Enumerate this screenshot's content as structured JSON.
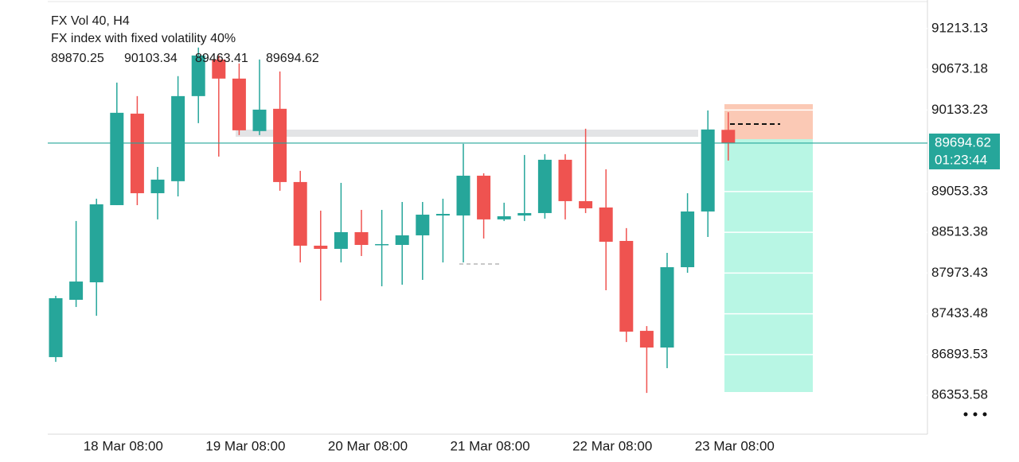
{
  "chart_data": {
    "type": "candlestick",
    "title": "FX Vol 40, H4",
    "subtitle": "FX index with fixed volatility 40%",
    "categories": [
      null,
      null,
      null,
      "18 Mar 08:00",
      null,
      null,
      null,
      null,
      null,
      "19 Mar 08:00",
      null,
      null,
      null,
      null,
      null,
      "20 Mar 08:00",
      null,
      null,
      null,
      null,
      null,
      "21 Mar 08:00",
      null,
      null,
      null,
      null,
      null,
      "22 Mar 08:00",
      null,
      null,
      null,
      null,
      null,
      "23 Mar 08:00"
    ],
    "open": [
      86860,
      87619,
      87851,
      88873,
      90085,
      89031,
      89190,
      90317,
      90802,
      90549,
      89854,
      90149,
      89179,
      88336,
      88294,
      88515,
      88346,
      88346,
      88473,
      88736,
      88736,
      89263,
      88684,
      88736,
      88768,
      89474,
      88926,
      88842,
      88399,
      87208,
      86987,
      88051,
      88789,
      89870.25
    ],
    "high": [
      87672,
      88663,
      88958,
      90496,
      90317,
      89379,
      90581,
      90960,
      90855,
      90749,
      90802,
      90644,
      89327,
      88800,
      89168,
      88810,
      88810,
      88915,
      88915,
      88958,
      89685,
      89295,
      88905,
      89537,
      89548,
      89548,
      89885,
      89348,
      88568,
      87271,
      88241,
      89031,
      90128,
      90103.34
    ],
    "low": [
      86797,
      87524,
      87408,
      88873,
      88873,
      88684,
      88989,
      89959,
      89516,
      89801,
      89801,
      89063,
      88114,
      87609,
      88114,
      88199,
      87798,
      87819,
      87883,
      88114,
      88114,
      88431,
      88663,
      88663,
      88694,
      88684,
      88768,
      87746,
      87060,
      86386,
      86713,
      87977,
      88452,
      89463.41
    ],
    "close": [
      87640,
      87861,
      88884,
      90096,
      89031,
      89211,
      90317,
      90855,
      90549,
      89864,
      90138,
      89179,
      88336,
      88294,
      88515,
      88346,
      88357,
      88473,
      88747,
      88757,
      89263,
      88684,
      88726,
      88768,
      89474,
      88926,
      88831,
      88388,
      87197,
      86987,
      88051,
      88789,
      89875,
      89694.62
    ],
    "up_color": "#26a69a",
    "down_color": "#ef5350",
    "ylim": [
      85850,
      91590
    ],
    "yticks": [
      91213.13,
      90673.18,
      90133.23,
      89053.33,
      88513.38,
      87973.43,
      87433.48,
      86893.53,
      86353.58
    ],
    "countdown": "01:23:44",
    "last_price_line": true
  }
}
